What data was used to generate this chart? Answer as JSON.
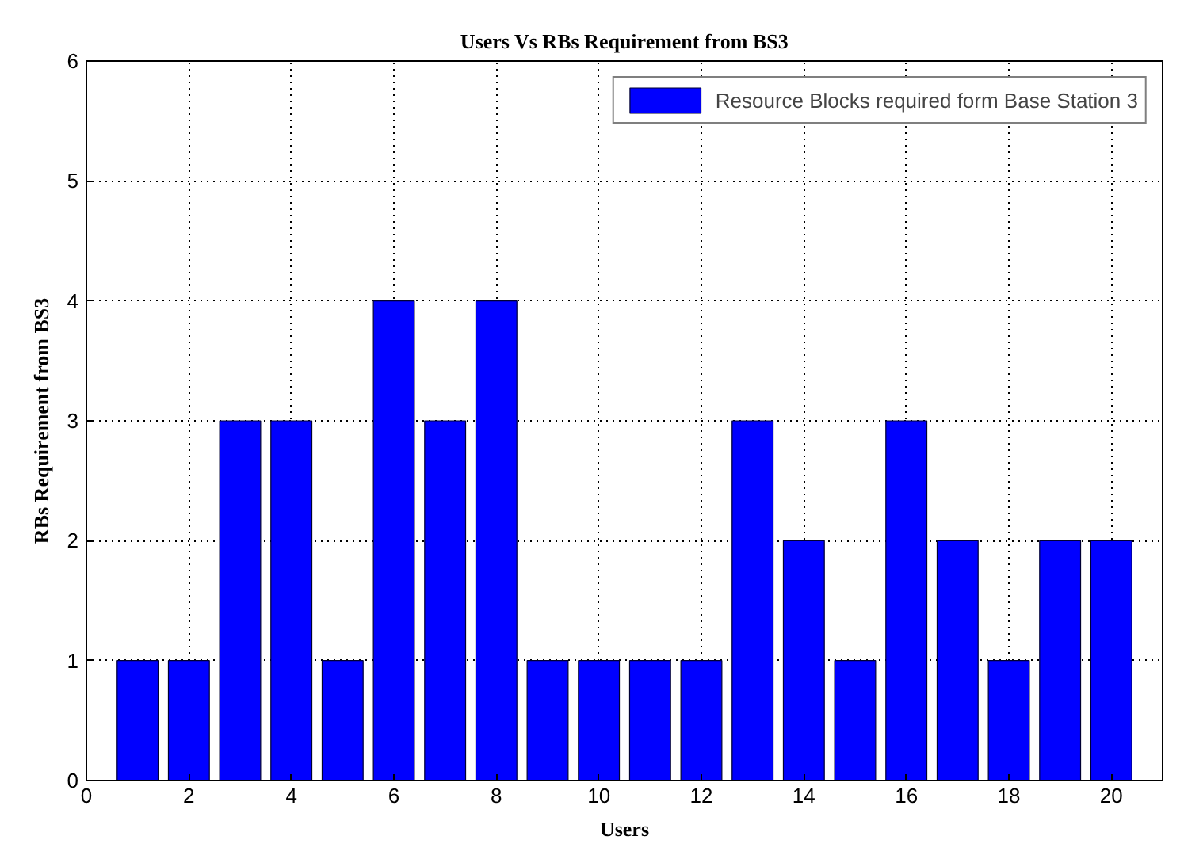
{
  "chart_data": {
    "type": "bar",
    "title": "Users Vs RBs Requirement from BS3",
    "xlabel": "Users",
    "ylabel": "RBs Requirement from BS3",
    "x": [
      1,
      2,
      3,
      4,
      5,
      6,
      7,
      8,
      9,
      10,
      11,
      12,
      13,
      14,
      15,
      16,
      17,
      18,
      19,
      20
    ],
    "series": [
      {
        "name": "Resource Blocks required form Base Station 3",
        "color": "#0000ff",
        "values": [
          1,
          1,
          3,
          3,
          1,
          4,
          3,
          4,
          1,
          1,
          1,
          1,
          3,
          2,
          1,
          3,
          2,
          1,
          2,
          2
        ]
      }
    ],
    "xlim": [
      0,
      21
    ],
    "xticks": [
      0,
      2,
      4,
      6,
      8,
      10,
      12,
      14,
      16,
      18,
      20
    ],
    "ylim": [
      0,
      6
    ],
    "yticks": [
      0,
      1,
      2,
      3,
      4,
      5,
      6
    ],
    "grid": true,
    "legend": "top right"
  }
}
